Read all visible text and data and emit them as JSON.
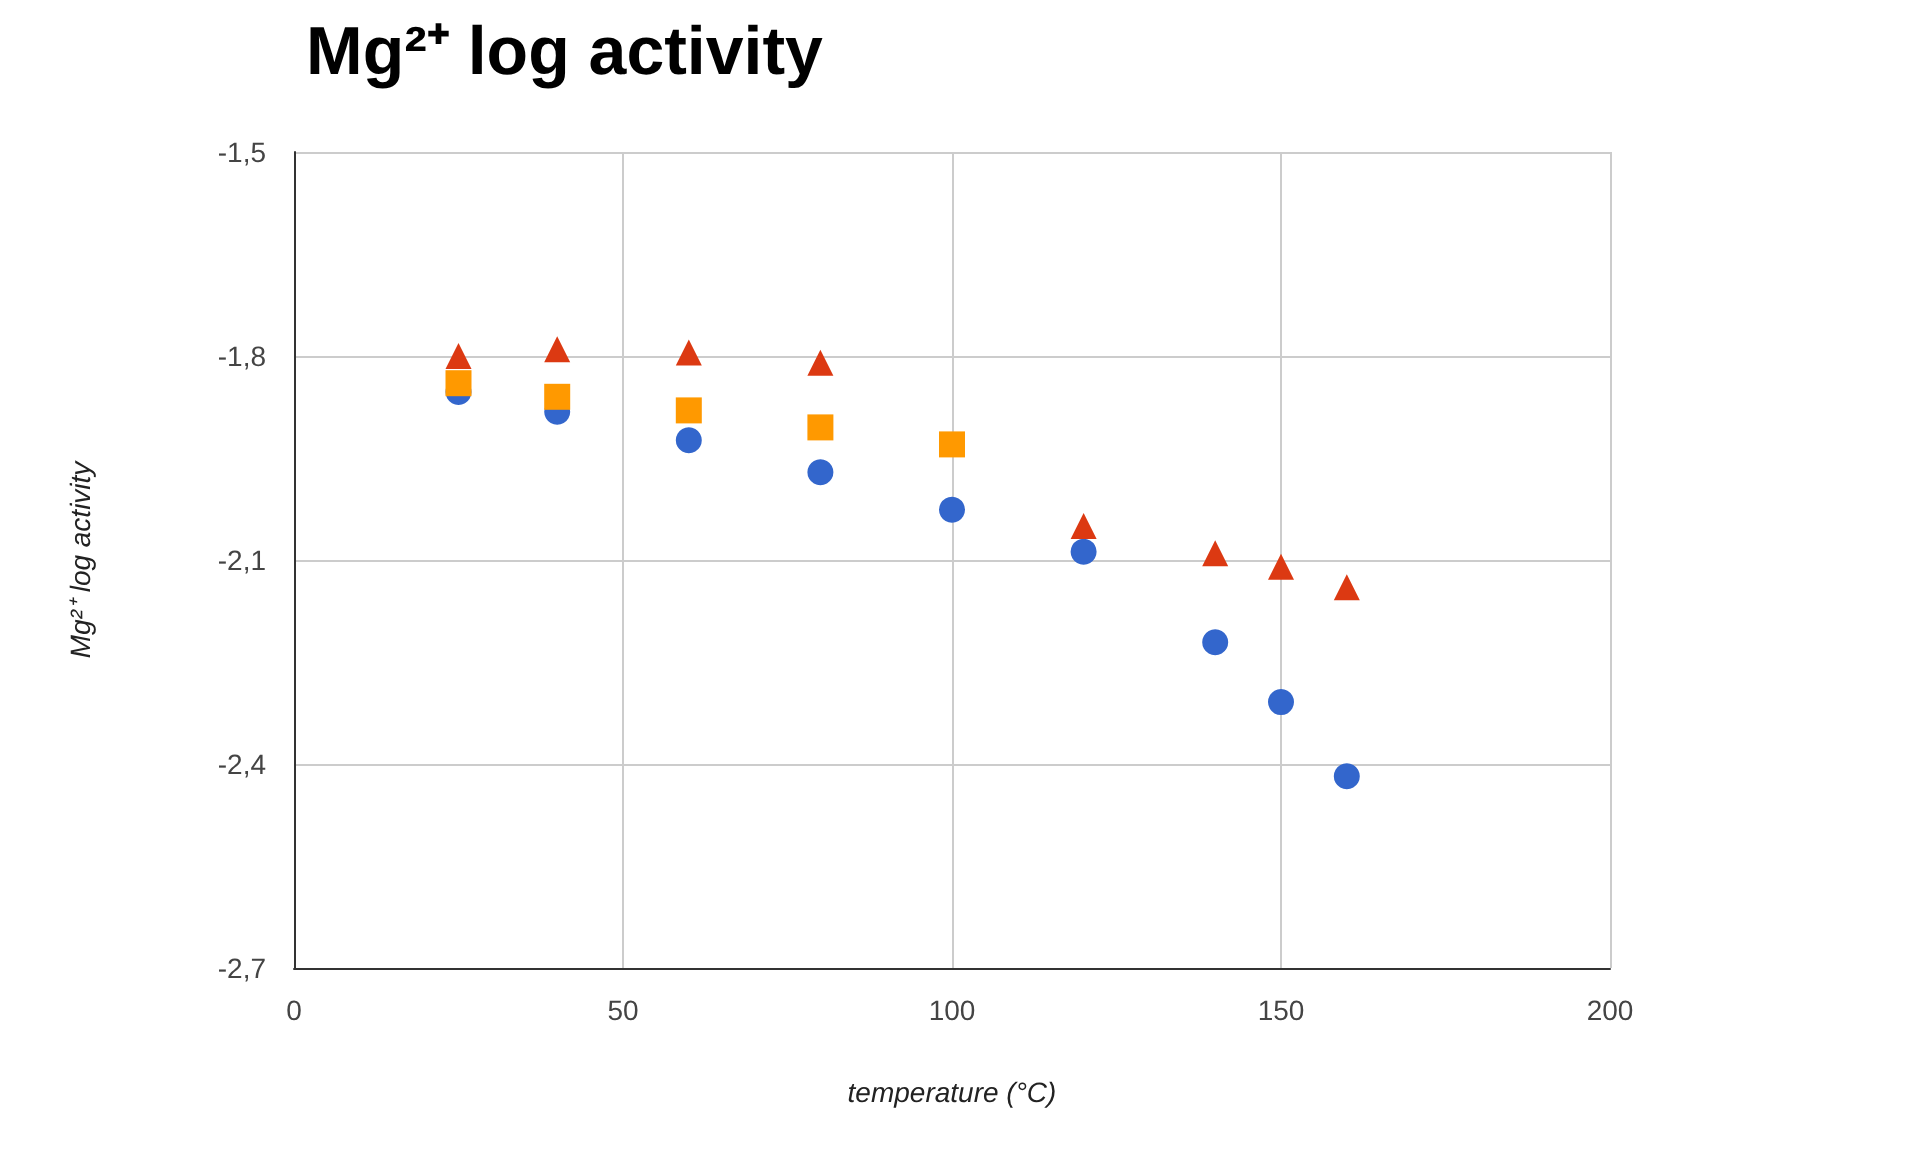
{
  "chart_data": {
    "type": "scatter",
    "title": "Mg²⁺ log activity",
    "xlabel": "temperature (°C)",
    "ylabel": "Mg²⁺ log activity",
    "series": [
      {
        "color": "#3366cc",
        "marker": "circle",
        "x": [
          25,
          40,
          60,
          80,
          100,
          120,
          140,
          150,
          160
        ],
        "values": [
          -1.853,
          -1.882,
          -1.924,
          -1.971,
          -2.026,
          -2.088,
          -2.221,
          -2.309,
          -2.418
        ]
      },
      {
        "color": "#dc3912",
        "marker": "triangle",
        "x": [
          25,
          40,
          60,
          80,
          100,
          120,
          140,
          150,
          160
        ],
        "values": [
          -1.8,
          -1.79,
          -1.795,
          -1.81,
          null,
          -2.05,
          -2.09,
          -2.11,
          -2.14
        ]
      },
      {
        "color": "#ff9900",
        "marker": "square",
        "x": [
          25,
          40,
          60,
          80,
          100
        ],
        "values": [
          -1.84,
          -1.86,
          -1.88,
          -1.905,
          -1.93
        ]
      }
    ],
    "xlim": [
      0,
      200
    ],
    "xticks": [
      0,
      50,
      100,
      150,
      200
    ],
    "ylim": [
      -2.7,
      -1.5
    ],
    "yticks": [
      {
        "value": -2.7,
        "label": "-2,7"
      },
      {
        "value": -2.4,
        "label": "-2,4"
      },
      {
        "value": -2.1,
        "label": "-2,1"
      },
      {
        "value": -1.8,
        "label": "-1,8"
      },
      {
        "value": -1.5,
        "label": "-1,5"
      }
    ],
    "grid": true
  }
}
